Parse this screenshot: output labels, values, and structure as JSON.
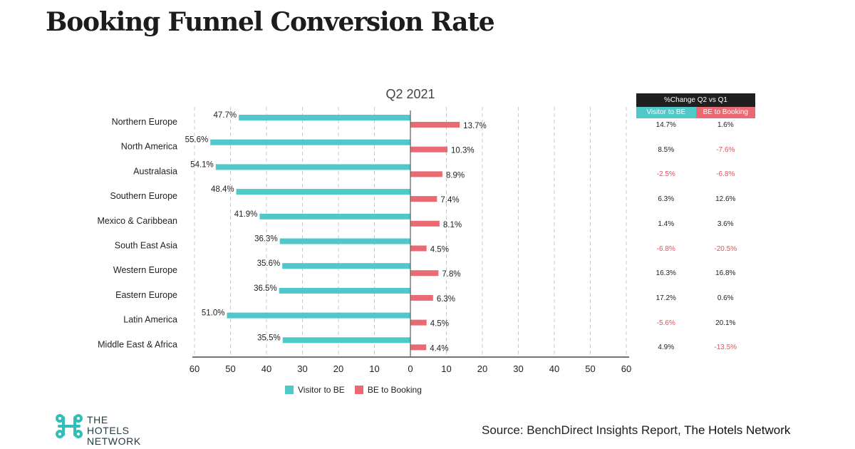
{
  "header": {
    "title": "Booking Funnel Conversion Rate"
  },
  "chart_data": {
    "type": "bar",
    "orientation": "horizontal-diverging",
    "title": "Q2 2021",
    "categories": [
      "Northern Europe",
      "North America",
      "Australasia",
      "Southern Europe",
      "Mexico & Caribbean",
      "South East Asia",
      "Western Europe",
      "Eastern Europe",
      "Latin America",
      "Middle East & Africa"
    ],
    "series": [
      {
        "name": "Visitor to BE",
        "color": "#4ec8c8",
        "direction": "left",
        "values": [
          47.7,
          55.6,
          54.1,
          48.4,
          41.9,
          36.3,
          35.6,
          36.5,
          51.0,
          35.5
        ]
      },
      {
        "name": "BE to Booking",
        "color": "#ea6a74",
        "direction": "right",
        "values": [
          13.7,
          10.3,
          8.9,
          7.4,
          8.1,
          4.5,
          7.8,
          6.3,
          4.5,
          4.4
        ]
      }
    ],
    "xticks": [
      "60",
      "50",
      "40",
      "30",
      "20",
      "10",
      "0",
      "10",
      "20",
      "30",
      "40",
      "50",
      "60"
    ],
    "xlim": [
      -60,
      60
    ],
    "grid": "vertical dashed",
    "legend": "bottom-center"
  },
  "change_table": {
    "header": "%Change Q2 vs Q1",
    "col1": "Visitor to BE",
    "col2": "BE to Booking",
    "rows": [
      {
        "visitor": "14.7%",
        "booking": "1.6%",
        "visitor_neg": false,
        "booking_neg": false
      },
      {
        "visitor": "8.5%",
        "booking": "-7.6%",
        "visitor_neg": false,
        "booking_neg": true
      },
      {
        "visitor": "-2.5%",
        "booking": "-6.8%",
        "visitor_neg": true,
        "booking_neg": true
      },
      {
        "visitor": "6.3%",
        "booking": "12.6%",
        "visitor_neg": false,
        "booking_neg": false
      },
      {
        "visitor": "1.4%",
        "booking": "3.6%",
        "visitor_neg": false,
        "booking_neg": false
      },
      {
        "visitor": "-6.8%",
        "booking": "-20.5%",
        "visitor_neg": true,
        "booking_neg": true
      },
      {
        "visitor": "16.3%",
        "booking": "16.8%",
        "visitor_neg": false,
        "booking_neg": false
      },
      {
        "visitor": "17.2%",
        "booking": "0.6%",
        "visitor_neg": false,
        "booking_neg": false
      },
      {
        "visitor": "-5.6%",
        "booking": "20.1%",
        "visitor_neg": true,
        "booking_neg": false
      },
      {
        "visitor": "4.9%",
        "booking": "-13.5%",
        "visitor_neg": false,
        "booking_neg": true
      }
    ],
    "positive_color": "#222222",
    "negative_color": "#e0525e"
  },
  "footer": {
    "logo_line1": "THE",
    "logo_line2": "HOTELS",
    "logo_line3": "NETWORK",
    "logo_color": "#2fbfb8",
    "source_prefix": "Source:  BenchDirect  Insights  Report,",
    "source_brand": "The Hotels Network"
  }
}
